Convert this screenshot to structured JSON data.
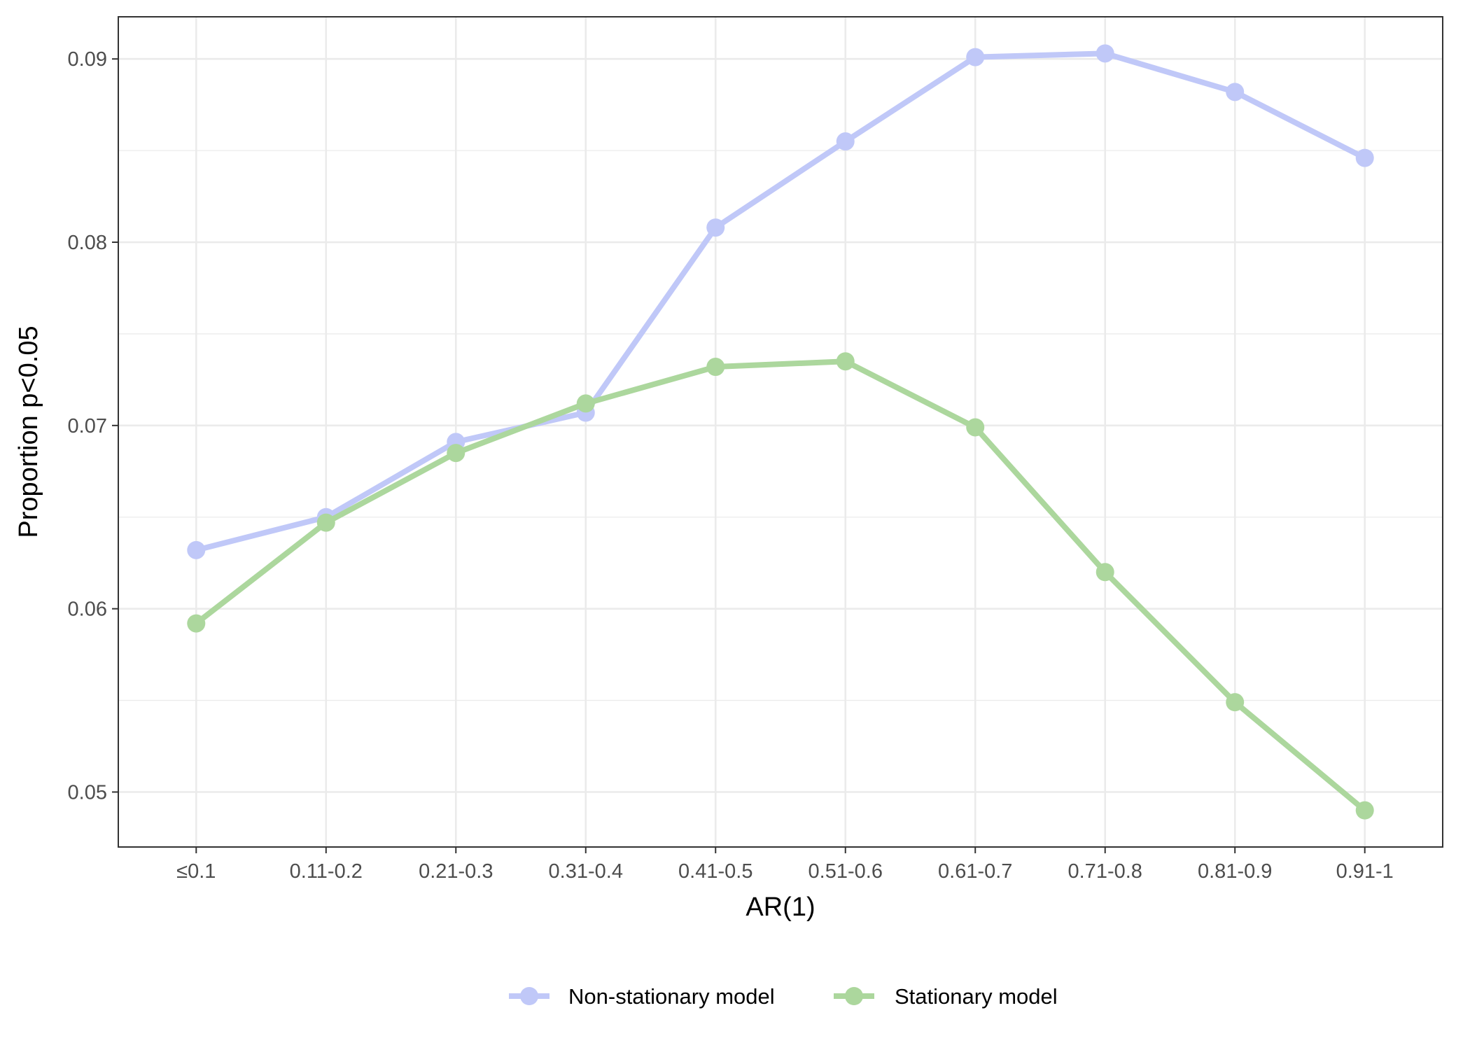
{
  "chart_data": {
    "type": "line",
    "title": "",
    "xlabel": "AR(1)",
    "ylabel": "Proportion p<0.05",
    "categories": [
      "≤0.1",
      "0.11-0.2",
      "0.21-0.3",
      "0.31-0.4",
      "0.41-0.5",
      "0.51-0.6",
      "0.61-0.7",
      "0.71-0.8",
      "0.81-0.9",
      "0.91-1"
    ],
    "ylim": [
      0.047,
      0.0923
    ],
    "yticks": [
      0.05,
      0.06,
      0.07,
      0.08,
      0.09
    ],
    "ytick_labels": [
      "0.05",
      "0.06",
      "0.07",
      "0.08",
      "0.09"
    ],
    "grid": true,
    "legend_position": "bottom",
    "series": [
      {
        "name": "Non-stationary model",
        "color": "#c0c8f8",
        "values": [
          0.0632,
          0.065,
          0.0691,
          0.0707,
          0.0808,
          0.0855,
          0.0901,
          0.0903,
          0.0882,
          0.0846
        ]
      },
      {
        "name": "Stationary model",
        "color": "#acd79d",
        "values": [
          0.0592,
          0.0647,
          0.0685,
          0.0712,
          0.0732,
          0.0735,
          0.0699,
          0.062,
          0.0549,
          0.049
        ]
      }
    ]
  }
}
